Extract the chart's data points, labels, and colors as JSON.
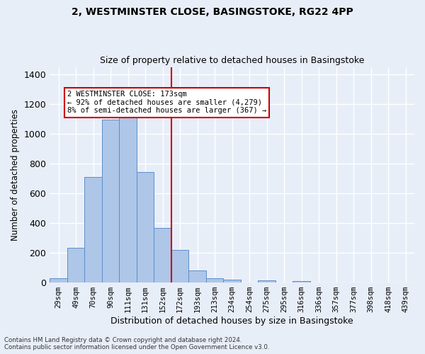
{
  "title": "2, WESTMINSTER CLOSE, BASINGSTOKE, RG22 4PP",
  "subtitle": "Size of property relative to detached houses in Basingstoke",
  "xlabel": "Distribution of detached houses by size in Basingstoke",
  "ylabel": "Number of detached properties",
  "categories": [
    "29sqm",
    "49sqm",
    "70sqm",
    "90sqm",
    "111sqm",
    "131sqm",
    "152sqm",
    "172sqm",
    "193sqm",
    "213sqm",
    "234sqm",
    "254sqm",
    "275sqm",
    "295sqm",
    "316sqm",
    "336sqm",
    "357sqm",
    "377sqm",
    "398sqm",
    "418sqm",
    "439sqm"
  ],
  "values": [
    30,
    235,
    710,
    1095,
    1110,
    745,
    365,
    220,
    80,
    30,
    20,
    0,
    15,
    0,
    10,
    0,
    0,
    0,
    0,
    0,
    0
  ],
  "bar_color": "#aec6e8",
  "bar_edge_color": "#5b8fc9",
  "vline_x_index": 7,
  "vline_color": "#cc0000",
  "annotation_text": "2 WESTMINSTER CLOSE: 173sqm\n← 92% of detached houses are smaller (4,279)\n8% of semi-detached houses are larger (367) →",
  "annotation_box_color": "#ffffff",
  "annotation_box_edge_color": "#cc0000",
  "ylim": [
    0,
    1450
  ],
  "yticks": [
    0,
    200,
    400,
    600,
    800,
    1000,
    1200,
    1400
  ],
  "background_color": "#e8eef8",
  "grid_color": "#ffffff",
  "footnote1": "Contains HM Land Registry data © Crown copyright and database right 2024.",
  "footnote2": "Contains public sector information licensed under the Open Government Licence v3.0."
}
